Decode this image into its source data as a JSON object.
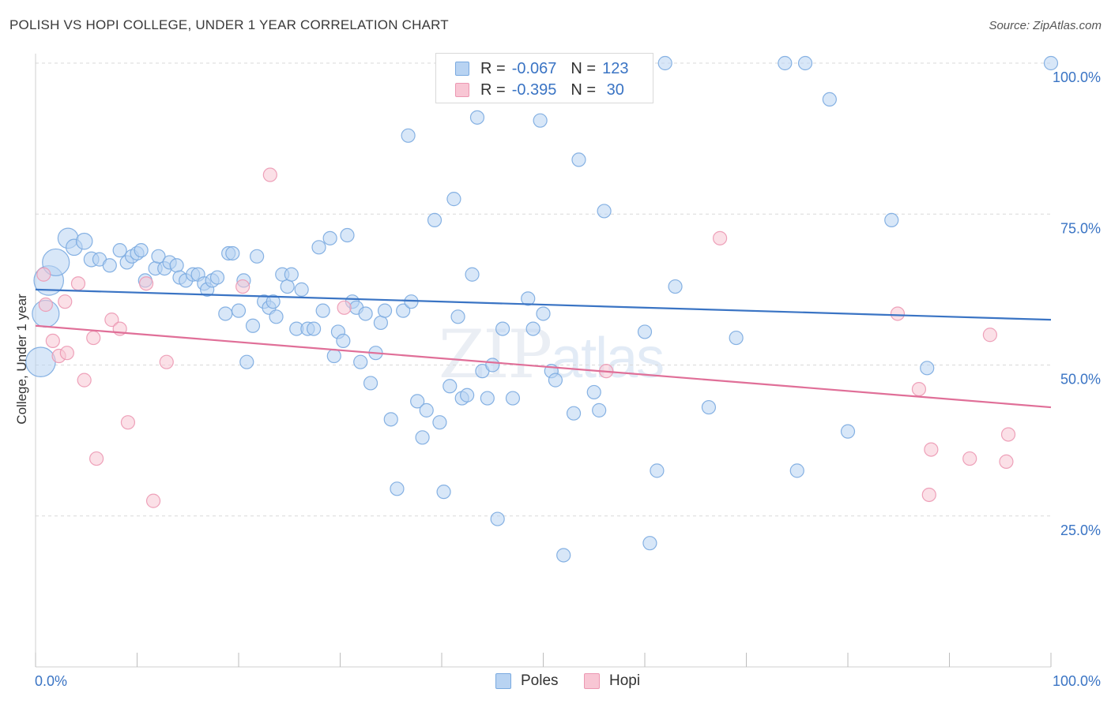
{
  "title": "POLISH VS HOPI COLLEGE, UNDER 1 YEAR CORRELATION CHART",
  "source": "Source: ZipAtlas.com",
  "watermark": {
    "zip": "ZIP",
    "atlas": "atlas"
  },
  "legend": {
    "rows": [
      {
        "r_label": "R =",
        "r_value": "-0.067",
        "n_label": "N =",
        "n_value": "123"
      },
      {
        "r_label": "R =",
        "r_value": "-0.395",
        "n_label": "N =",
        "n_value": " 30"
      }
    ]
  },
  "bottom_legend": [
    "Poles",
    "Hopi"
  ],
  "colors": {
    "poles_fill": "#b8d3f2",
    "poles_stroke": "#7aaae0",
    "poles_line": "#3a74c4",
    "hopi_fill": "#f8c6d4",
    "hopi_stroke": "#ec98b2",
    "hopi_line": "#e06f98",
    "grid": "#d9d9d9",
    "tick_label": "#3a74c4"
  },
  "chart_data": {
    "type": "scatter",
    "title": "POLISH VS HOPI COLLEGE, UNDER 1 YEAR CORRELATION CHART",
    "xlabel": "",
    "ylabel": "College, Under 1 year",
    "xlim": [
      0,
      100
    ],
    "ylim": [
      0,
      100
    ],
    "x_tick_labels": [
      "0.0%",
      "100.0%"
    ],
    "y_tick_labels": [
      "100.0%",
      "75.0%",
      "50.0%",
      "25.0%"
    ],
    "y_ticks": [
      100,
      75,
      50,
      25
    ],
    "grid": true,
    "series": [
      {
        "name": "Poles",
        "regression": {
          "x": [
            0,
            100
          ],
          "y": [
            62.5,
            57.5
          ]
        },
        "points": [
          {
            "x": 0.5,
            "y": 50.5,
            "s": 2.2
          },
          {
            "x": 1.0,
            "y": 58.5,
            "s": 2.0
          },
          {
            "x": 1.3,
            "y": 64.0,
            "s": 2.2
          },
          {
            "x": 2.0,
            "y": 67.0,
            "s": 2.0
          },
          {
            "x": 3.2,
            "y": 71.0,
            "s": 1.5
          },
          {
            "x": 3.8,
            "y": 69.5,
            "s": 1.2
          },
          {
            "x": 4.8,
            "y": 70.5,
            "s": 1.2
          },
          {
            "x": 5.5,
            "y": 67.5,
            "s": 1.1
          },
          {
            "x": 6.3,
            "y": 67.5,
            "s": 1.0
          },
          {
            "x": 7.3,
            "y": 66.5,
            "s": 1.0
          },
          {
            "x": 8.3,
            "y": 69.0,
            "s": 1.0
          },
          {
            "x": 9.0,
            "y": 67.0,
            "s": 1.0
          },
          {
            "x": 9.5,
            "y": 68.0,
            "s": 1.0
          },
          {
            "x": 10.0,
            "y": 68.5,
            "s": 1.0
          },
          {
            "x": 10.4,
            "y": 69.0,
            "s": 1.0
          },
          {
            "x": 10.8,
            "y": 64.0,
            "s": 1.0
          },
          {
            "x": 11.8,
            "y": 66.0,
            "s": 1.0
          },
          {
            "x": 12.1,
            "y": 68.0,
            "s": 1.0
          },
          {
            "x": 12.7,
            "y": 66.0,
            "s": 1.0
          },
          {
            "x": 13.2,
            "y": 67.0,
            "s": 1.0
          },
          {
            "x": 13.9,
            "y": 66.5,
            "s": 1.0
          },
          {
            "x": 14.2,
            "y": 64.5,
            "s": 1.0
          },
          {
            "x": 14.8,
            "y": 64.0,
            "s": 1.0
          },
          {
            "x": 15.5,
            "y": 65.0,
            "s": 1.0
          },
          {
            "x": 16.0,
            "y": 65.0,
            "s": 1.0
          },
          {
            "x": 16.6,
            "y": 63.5,
            "s": 1.0
          },
          {
            "x": 16.9,
            "y": 62.5,
            "s": 1.0
          },
          {
            "x": 17.4,
            "y": 64.0,
            "s": 1.0
          },
          {
            "x": 17.9,
            "y": 64.5,
            "s": 1.0
          },
          {
            "x": 18.7,
            "y": 58.5,
            "s": 1.0
          },
          {
            "x": 19.0,
            "y": 68.5,
            "s": 1.0
          },
          {
            "x": 19.4,
            "y": 68.5,
            "s": 1.0
          },
          {
            "x": 20.0,
            "y": 59.0,
            "s": 1.0
          },
          {
            "x": 20.5,
            "y": 64.0,
            "s": 1.0
          },
          {
            "x": 20.8,
            "y": 50.5,
            "s": 1.0
          },
          {
            "x": 21.4,
            "y": 56.5,
            "s": 1.0
          },
          {
            "x": 21.8,
            "y": 68.0,
            "s": 1.0
          },
          {
            "x": 22.5,
            "y": 60.5,
            "s": 1.0
          },
          {
            "x": 23.0,
            "y": 59.5,
            "s": 1.0
          },
          {
            "x": 23.4,
            "y": 60.5,
            "s": 1.0
          },
          {
            "x": 23.7,
            "y": 58.0,
            "s": 1.0
          },
          {
            "x": 24.3,
            "y": 65.0,
            "s": 1.0
          },
          {
            "x": 24.8,
            "y": 63.0,
            "s": 1.0
          },
          {
            "x": 25.2,
            "y": 65.0,
            "s": 1.0
          },
          {
            "x": 25.7,
            "y": 56.0,
            "s": 1.0
          },
          {
            "x": 26.2,
            "y": 62.5,
            "s": 1.0
          },
          {
            "x": 26.8,
            "y": 56.0,
            "s": 1.0
          },
          {
            "x": 27.4,
            "y": 56.0,
            "s": 1.0
          },
          {
            "x": 27.9,
            "y": 69.5,
            "s": 1.0
          },
          {
            "x": 28.3,
            "y": 59.0,
            "s": 1.0
          },
          {
            "x": 29.0,
            "y": 71.0,
            "s": 1.0
          },
          {
            "x": 29.4,
            "y": 51.5,
            "s": 1.0
          },
          {
            "x": 29.8,
            "y": 55.5,
            "s": 1.0
          },
          {
            "x": 30.3,
            "y": 54.0,
            "s": 1.0
          },
          {
            "x": 30.7,
            "y": 71.5,
            "s": 1.0
          },
          {
            "x": 31.2,
            "y": 60.5,
            "s": 1.0
          },
          {
            "x": 31.6,
            "y": 59.5,
            "s": 1.0
          },
          {
            "x": 32.0,
            "y": 50.5,
            "s": 1.0
          },
          {
            "x": 32.5,
            "y": 58.5,
            "s": 1.0
          },
          {
            "x": 33.0,
            "y": 47.0,
            "s": 1.0
          },
          {
            "x": 33.5,
            "y": 52.0,
            "s": 1.0
          },
          {
            "x": 34.0,
            "y": 57.0,
            "s": 1.0
          },
          {
            "x": 34.4,
            "y": 59.0,
            "s": 1.0
          },
          {
            "x": 35.0,
            "y": 41.0,
            "s": 1.0
          },
          {
            "x": 35.6,
            "y": 29.5,
            "s": 1.0
          },
          {
            "x": 36.2,
            "y": 59.0,
            "s": 1.0
          },
          {
            "x": 36.7,
            "y": 88.0,
            "s": 1.0
          },
          {
            "x": 37.0,
            "y": 60.5,
            "s": 1.0
          },
          {
            "x": 37.6,
            "y": 44.0,
            "s": 1.0
          },
          {
            "x": 38.1,
            "y": 38.0,
            "s": 1.0
          },
          {
            "x": 38.5,
            "y": 42.5,
            "s": 1.0
          },
          {
            "x": 39.3,
            "y": 74.0,
            "s": 1.0
          },
          {
            "x": 39.8,
            "y": 40.5,
            "s": 1.0
          },
          {
            "x": 40.2,
            "y": 29.0,
            "s": 1.0
          },
          {
            "x": 40.8,
            "y": 46.5,
            "s": 1.0
          },
          {
            "x": 41.2,
            "y": 77.5,
            "s": 1.0
          },
          {
            "x": 41.6,
            "y": 58.0,
            "s": 1.0
          },
          {
            "x": 42.0,
            "y": 44.5,
            "s": 1.0
          },
          {
            "x": 42.5,
            "y": 45.0,
            "s": 1.0
          },
          {
            "x": 43.0,
            "y": 65.0,
            "s": 1.0
          },
          {
            "x": 43.5,
            "y": 91.0,
            "s": 1.0
          },
          {
            "x": 44.0,
            "y": 49.0,
            "s": 1.0
          },
          {
            "x": 44.5,
            "y": 44.5,
            "s": 1.0
          },
          {
            "x": 45.0,
            "y": 50.0,
            "s": 1.0
          },
          {
            "x": 45.5,
            "y": 24.5,
            "s": 1.0
          },
          {
            "x": 46.0,
            "y": 56.0,
            "s": 1.0
          },
          {
            "x": 47.0,
            "y": 44.5,
            "s": 1.0
          },
          {
            "x": 47.7,
            "y": 100.0,
            "s": 1.0
          },
          {
            "x": 48.5,
            "y": 61.0,
            "s": 1.0
          },
          {
            "x": 49.0,
            "y": 56.0,
            "s": 1.0
          },
          {
            "x": 49.7,
            "y": 90.5,
            "s": 1.0
          },
          {
            "x": 50.0,
            "y": 58.5,
            "s": 1.0
          },
          {
            "x": 50.8,
            "y": 49.0,
            "s": 1.0
          },
          {
            "x": 51.2,
            "y": 47.5,
            "s": 1.0
          },
          {
            "x": 52.0,
            "y": 18.5,
            "s": 1.0
          },
          {
            "x": 53.0,
            "y": 42.0,
            "s": 1.0
          },
          {
            "x": 53.5,
            "y": 84.0,
            "s": 1.0
          },
          {
            "x": 54.0,
            "y": 100.0,
            "s": 1.0
          },
          {
            "x": 55.0,
            "y": 45.5,
            "s": 1.0
          },
          {
            "x": 55.5,
            "y": 42.5,
            "s": 1.0
          },
          {
            "x": 56.0,
            "y": 75.5,
            "s": 1.0
          },
          {
            "x": 60.0,
            "y": 55.5,
            "s": 1.0
          },
          {
            "x": 60.5,
            "y": 20.5,
            "s": 1.0
          },
          {
            "x": 61.2,
            "y": 32.5,
            "s": 1.0
          },
          {
            "x": 62.0,
            "y": 100.0,
            "s": 1.0
          },
          {
            "x": 63.0,
            "y": 63.0,
            "s": 1.0
          },
          {
            "x": 66.3,
            "y": 43.0,
            "s": 1.0
          },
          {
            "x": 69.0,
            "y": 54.5,
            "s": 1.0
          },
          {
            "x": 73.8,
            "y": 100.0,
            "s": 1.0
          },
          {
            "x": 75.8,
            "y": 100.0,
            "s": 1.0
          },
          {
            "x": 75.0,
            "y": 32.5,
            "s": 1.0
          },
          {
            "x": 78.2,
            "y": 94.0,
            "s": 1.0
          },
          {
            "x": 80.0,
            "y": 39.0,
            "s": 1.0
          },
          {
            "x": 84.3,
            "y": 74.0,
            "s": 1.0
          },
          {
            "x": 87.8,
            "y": 49.5,
            "s": 1.0
          },
          {
            "x": 100.0,
            "y": 100.0,
            "s": 1.0
          }
        ]
      },
      {
        "name": "Hopi",
        "regression": {
          "x": [
            0,
            100
          ],
          "y": [
            56.5,
            43.0
          ]
        },
        "points": [
          {
            "x": 0.8,
            "y": 65.0,
            "s": 1.0
          },
          {
            "x": 1.0,
            "y": 60.0,
            "s": 1.0
          },
          {
            "x": 1.7,
            "y": 54.0,
            "s": 1.0
          },
          {
            "x": 2.3,
            "y": 51.5,
            "s": 1.0
          },
          {
            "x": 3.1,
            "y": 52.0,
            "s": 1.0
          },
          {
            "x": 2.9,
            "y": 60.5,
            "s": 1.0
          },
          {
            "x": 4.2,
            "y": 63.5,
            "s": 1.0
          },
          {
            "x": 4.8,
            "y": 47.5,
            "s": 1.0
          },
          {
            "x": 5.7,
            "y": 54.5,
            "s": 1.0
          },
          {
            "x": 6.0,
            "y": 34.5,
            "s": 1.0
          },
          {
            "x": 7.5,
            "y": 57.5,
            "s": 1.0
          },
          {
            "x": 8.3,
            "y": 56.0,
            "s": 1.0
          },
          {
            "x": 9.1,
            "y": 40.5,
            "s": 1.0
          },
          {
            "x": 10.9,
            "y": 63.5,
            "s": 1.0
          },
          {
            "x": 11.6,
            "y": 27.5,
            "s": 1.0
          },
          {
            "x": 12.9,
            "y": 50.5,
            "s": 1.0
          },
          {
            "x": 20.4,
            "y": 63.0,
            "s": 1.0
          },
          {
            "x": 23.1,
            "y": 81.5,
            "s": 1.0
          },
          {
            "x": 30.4,
            "y": 59.5,
            "s": 1.0
          },
          {
            "x": 56.2,
            "y": 49.0,
            "s": 1.0
          },
          {
            "x": 67.4,
            "y": 71.0,
            "s": 1.0
          },
          {
            "x": 84.9,
            "y": 58.5,
            "s": 1.0
          },
          {
            "x": 87.0,
            "y": 46.0,
            "s": 1.0
          },
          {
            "x": 88.0,
            "y": 28.5,
            "s": 1.0
          },
          {
            "x": 88.2,
            "y": 36.0,
            "s": 1.0
          },
          {
            "x": 92.0,
            "y": 34.5,
            "s": 1.0
          },
          {
            "x": 94.0,
            "y": 55.0,
            "s": 1.0
          },
          {
            "x": 95.6,
            "y": 34.0,
            "s": 1.0
          },
          {
            "x": 95.8,
            "y": 38.5,
            "s": 1.0
          }
        ]
      }
    ]
  }
}
